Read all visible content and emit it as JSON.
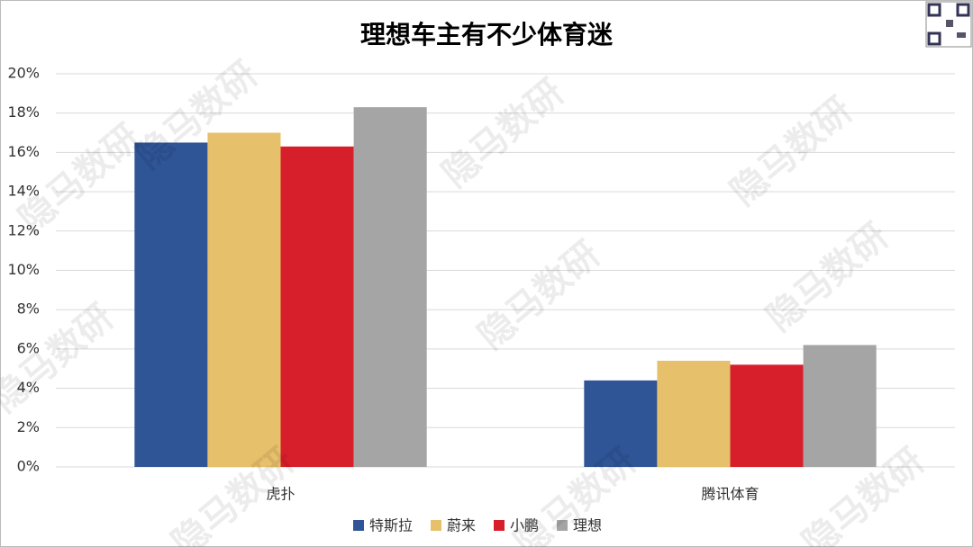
{
  "chart_data": {
    "type": "bar",
    "title": "理想车主有不少体育迷",
    "categories": [
      "虎扑",
      "腾讯体育"
    ],
    "series": [
      {
        "name": "特斯拉",
        "color": "#2f5597",
        "values": [
          16.5,
          4.4
        ]
      },
      {
        "name": "蔚来",
        "color": "#e6c06a",
        "values": [
          17.0,
          5.4
        ]
      },
      {
        "name": "小鹏",
        "color": "#d71e2b",
        "values": [
          16.3,
          5.2
        ]
      },
      {
        "name": "理想",
        "color": "#a5a5a5",
        "values": [
          18.3,
          6.2
        ]
      }
    ],
    "ylim": [
      0,
      20
    ],
    "yticks": [
      {
        "value": 0,
        "label": "0%"
      },
      {
        "value": 2,
        "label": "2%"
      },
      {
        "value": 4,
        "label": "4%"
      },
      {
        "value": 6,
        "label": "6%"
      },
      {
        "value": 8,
        "label": "8%"
      },
      {
        "value": 10,
        "label": "10%"
      },
      {
        "value": 12,
        "label": "12%"
      },
      {
        "value": 14,
        "label": "14%"
      },
      {
        "value": 16,
        "label": "16%"
      },
      {
        "value": 18,
        "label": "18%"
      },
      {
        "value": 20,
        "label": "20%"
      }
    ],
    "grid": true,
    "legend": "bottom"
  },
  "watermark": "隐马数研"
}
